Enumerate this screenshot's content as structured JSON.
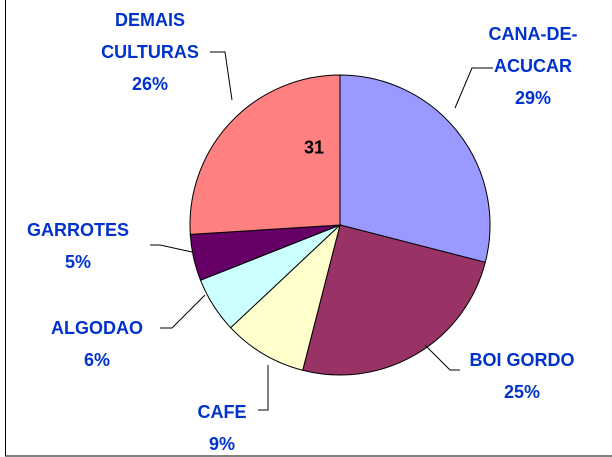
{
  "chart_data": {
    "type": "pie",
    "categories": [
      "CANA-DE-ACUCAR",
      "BOI GORDO",
      "CAFE",
      "ALGODAO",
      "GARROTES",
      "DEMAIS CULTURAS"
    ],
    "values": [
      29,
      25,
      9,
      6,
      5,
      26
    ],
    "value_labels": [
      "29%",
      "25%",
      "9%",
      "6%",
      "5%",
      "26%"
    ],
    "colors": [
      "#9999ff",
      "#993366",
      "#ffffcc",
      "#ccffff",
      "#660066",
      "#ff8080"
    ],
    "annotations": [
      "31"
    ]
  }
}
